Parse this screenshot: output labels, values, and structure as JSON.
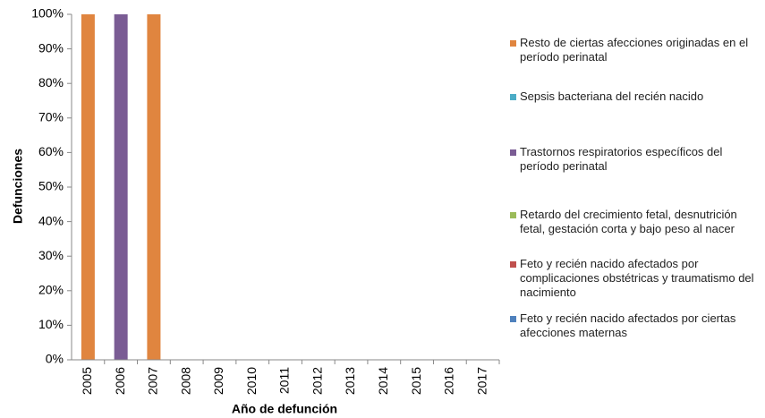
{
  "chart_data": {
    "type": "stacked_bar_100",
    "x_label": "Año de defunción",
    "y_label": "Defunciones",
    "categories": [
      "2005",
      "2006",
      "2007",
      "2008",
      "2009",
      "2010",
      "2011",
      "2012",
      "2013",
      "2014",
      "2015",
      "2016",
      "2017"
    ],
    "series": [
      {
        "name": "Resto de ciertas afecciones originadas en el período perinatal",
        "color": "#e0853f",
        "values": [
          100,
          0,
          100,
          0,
          0,
          0,
          0,
          0,
          0,
          0,
          0,
          0,
          0
        ]
      },
      {
        "name": "Sepsis bacteriana del recién nacido",
        "color": "#4bacc6",
        "values": [
          0,
          0,
          0,
          0,
          0,
          0,
          0,
          0,
          0,
          0,
          0,
          0,
          0
        ]
      },
      {
        "name": "Trastornos respiratorios específicos del período perinatal",
        "color": "#7a5c94",
        "values": [
          0,
          100,
          0,
          0,
          0,
          0,
          0,
          0,
          0,
          0,
          0,
          0,
          0
        ]
      },
      {
        "name": "Retardo del crecimiento fetal, desnutrición fetal, gestación corta y bajo peso al nacer",
        "color": "#9bbb59",
        "values": [
          0,
          0,
          0,
          0,
          0,
          0,
          0,
          0,
          0,
          0,
          0,
          0,
          0
        ]
      },
      {
        "name": "Feto y recién nacido afectados por complicaciones obstétricas y traumatismo del nacimiento",
        "color": "#c0504d",
        "values": [
          0,
          0,
          0,
          0,
          0,
          0,
          0,
          0,
          0,
          0,
          0,
          0,
          0
        ]
      },
      {
        "name": "Feto y recién nacido afectados por ciertas afecciones maternas",
        "color": "#4f81bd",
        "values": [
          0,
          0,
          0,
          0,
          0,
          0,
          0,
          0,
          0,
          0,
          0,
          0,
          0
        ]
      }
    ],
    "ylim": [
      0,
      100
    ],
    "yticks": [
      {
        "value": 0,
        "label": "0%"
      },
      {
        "value": 10,
        "label": "10%"
      },
      {
        "value": 20,
        "label": "20%"
      },
      {
        "value": 30,
        "label": "30%"
      },
      {
        "value": 40,
        "label": "40%"
      },
      {
        "value": 50,
        "label": "50%"
      },
      {
        "value": 60,
        "label": "60%"
      },
      {
        "value": 70,
        "label": "70%"
      },
      {
        "value": 80,
        "label": "80%"
      },
      {
        "value": 90,
        "label": "90%"
      },
      {
        "value": 100,
        "label": "100%"
      }
    ],
    "legend": "right"
  }
}
